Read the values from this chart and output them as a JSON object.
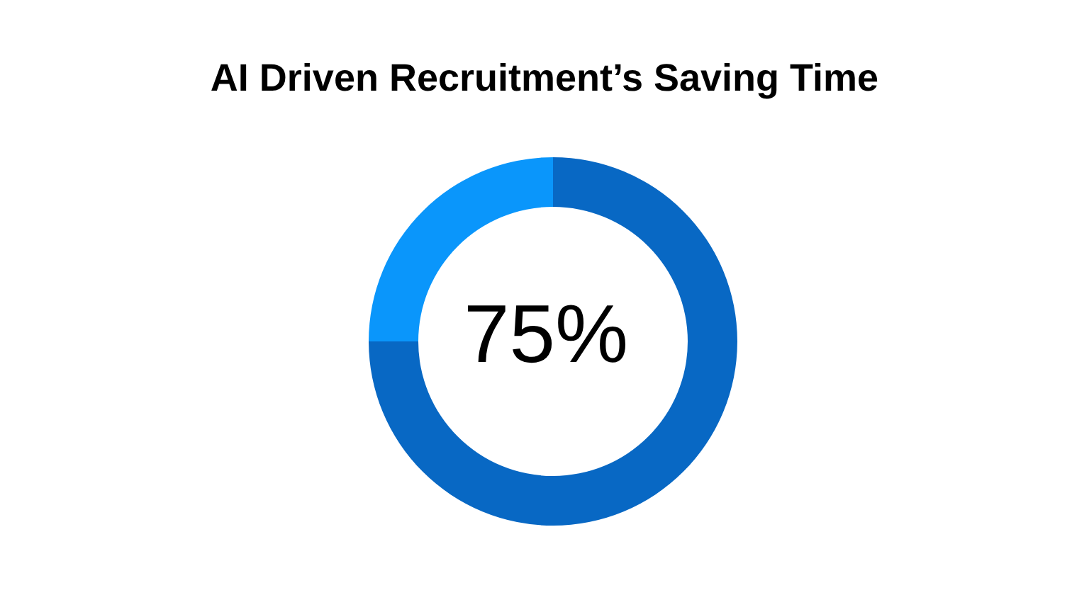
{
  "chart_data": {
    "type": "donut",
    "title": "AI Driven Recruitment’s Saving Time",
    "categories": [
      null,
      null
    ],
    "values": [
      75,
      25
    ],
    "colors": [
      "#0868c4",
      "#0a96fb"
    ],
    "annotations": [
      "75%"
    ],
    "legend": false
  }
}
